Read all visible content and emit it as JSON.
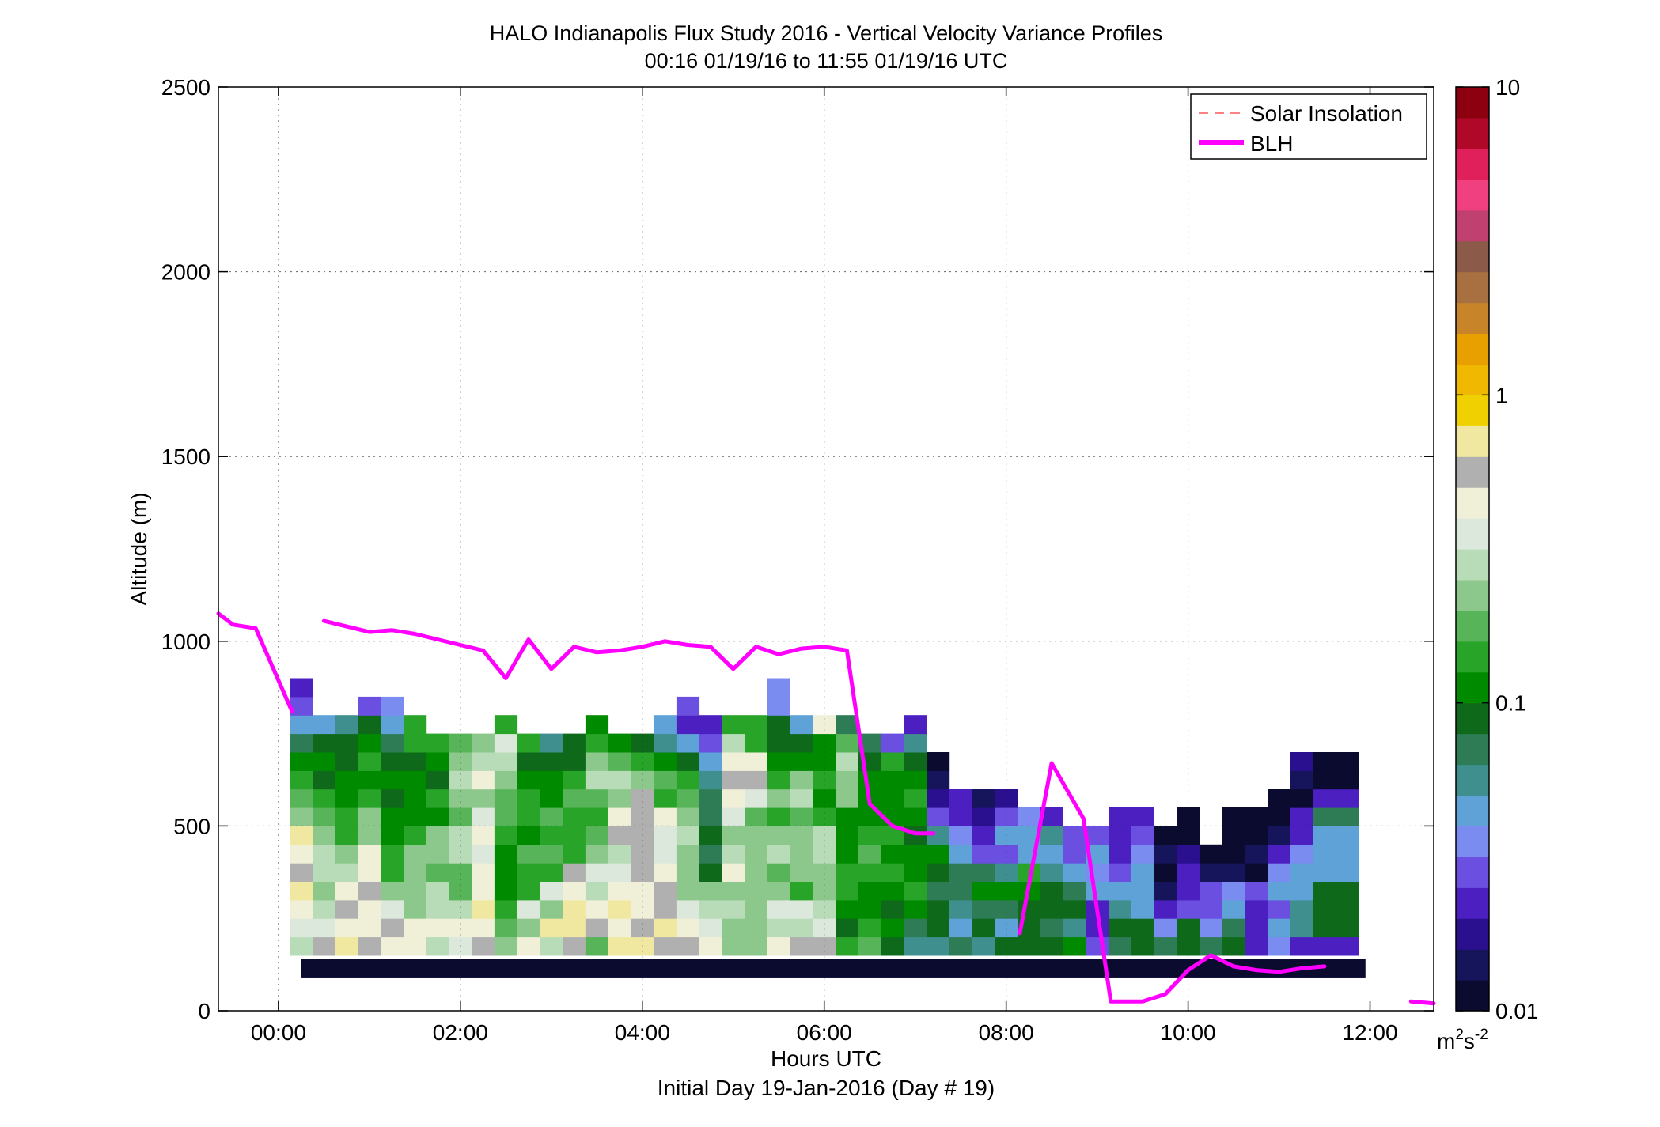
{
  "chart_data": {
    "type": "heatmap",
    "title": "HALO Indianapolis Flux Study 2016 - Vertical Velocity Variance Profiles",
    "subtitle": "00:16 01/19/16 to 11:55 01/19/16  UTC",
    "xlabel": "Hours UTC",
    "xlabel2": "Initial Day 19-Jan-2016 (Day # 19)",
    "ylabel": "Altitude (m)",
    "xlim": [
      -0.66,
      12.7
    ],
    "ylim": [
      0,
      2500
    ],
    "x_ticks": [
      {
        "value": 0,
        "label": "00:00"
      },
      {
        "value": 2,
        "label": "02:00"
      },
      {
        "value": 4,
        "label": "04:00"
      },
      {
        "value": 6,
        "label": "06:00"
      },
      {
        "value": 8,
        "label": "08:00"
      },
      {
        "value": 10,
        "label": "10:00"
      },
      {
        "value": 12,
        "label": "12:00"
      }
    ],
    "y_ticks": [
      {
        "value": 0,
        "label": "0"
      },
      {
        "value": 500,
        "label": "500"
      },
      {
        "value": 1000,
        "label": "1000"
      },
      {
        "value": 1500,
        "label": "1500"
      },
      {
        "value": 2000,
        "label": "2000"
      },
      {
        "value": 2500,
        "label": "2500"
      }
    ],
    "grid": true,
    "legend_position": "top-right",
    "legend": [
      {
        "label": "Solar Insolation",
        "color": "#ff8080",
        "style": "dashed"
      },
      {
        "label": "BLH",
        "color": "#ff00ff",
        "style": "solid"
      }
    ],
    "colorbar": {
      "scale": "log",
      "ticks": [
        {
          "value": 10,
          "label": "10"
        },
        {
          "value": 1,
          "label": "1"
        },
        {
          "value": 0.1,
          "label": "0.1"
        },
        {
          "value": 0.01,
          "label": "0.01"
        }
      ],
      "unit_base": "m",
      "unit_exp1": "2",
      "unit_mid": "s",
      "unit_exp2": "-2",
      "colors": [
        "#0b0b30",
        "#16145a",
        "#2a0f8f",
        "#4b1fc0",
        "#6a4fe0",
        "#7a8cf0",
        "#5fa2d8",
        "#3f8f8f",
        "#2e7c56",
        "#0e6a1a",
        "#008a00",
        "#28a428",
        "#58b458",
        "#8cc88c",
        "#b8dcb8",
        "#dce8dc",
        "#f0f0d8",
        "#b0b0b0",
        "#f0e8a0",
        "#f0d000",
        "#f0b800",
        "#e8a000",
        "#c88428",
        "#a87040",
        "#8c5a48",
        "#c04070",
        "#f04080",
        "#e0205a",
        "#b00828",
        "#8c0010"
      ]
    },
    "bin_height_m": 50,
    "x_bins": [
      0.25,
      0.5,
      0.75,
      1.0,
      1.25,
      1.5,
      1.75,
      2.0,
      2.25,
      2.5,
      2.75,
      3.0,
      3.25,
      3.5,
      3.75,
      4.0,
      4.25,
      4.5,
      4.75,
      5.0,
      5.25,
      5.5,
      5.75,
      6.0,
      6.25,
      6.5,
      6.75,
      7.0,
      7.25,
      7.5,
      7.75,
      8.0,
      8.25,
      8.5,
      8.75,
      9.0,
      9.25,
      9.5,
      9.75,
      10.0,
      10.25,
      10.5,
      10.75,
      11.0,
      11.25,
      11.5,
      11.75
    ],
    "column_bottom_m": 150,
    "columns": [
      {
        "x": 0.25,
        "v": [
          0.28,
          0.33,
          0.5,
          0.65,
          0.55,
          0.45,
          0.7,
          0.22,
          0.18,
          0.14,
          0.1,
          0.07,
          0.05,
          0.03,
          0.02
        ]
      },
      {
        "x": 0.5,
        "v": [
          0.6,
          0.35,
          0.28,
          0.25,
          0.3,
          0.28,
          0.22,
          0.16,
          0.13,
          0.08,
          0.12,
          0.09,
          0.05
        ]
      },
      {
        "x": 0.75,
        "v": [
          0.65,
          0.45,
          0.55,
          0.48,
          0.28,
          0.25,
          0.14,
          0.13,
          0.12,
          0.1,
          0.08,
          0.09,
          0.06
        ]
      },
      {
        "x": 1.0,
        "v": [
          0.6,
          0.5,
          0.45,
          0.55,
          0.5,
          0.4,
          0.23,
          0.25,
          0.13,
          0.11,
          0.13,
          0.1,
          0.09,
          0.03
        ]
      },
      {
        "x": 1.25,
        "v": [
          0.5,
          0.55,
          0.35,
          0.25,
          0.14,
          0.14,
          0.12,
          0.12,
          0.09,
          0.1,
          0.08,
          0.07,
          0.05,
          0.035
        ]
      },
      {
        "x": 1.5,
        "v": [
          0.4,
          0.5,
          0.25,
          0.2,
          0.22,
          0.25,
          0.15,
          0.11,
          0.11,
          0.1,
          0.09,
          0.13,
          0.14
        ]
      },
      {
        "x": 1.75,
        "v": [
          0.3,
          0.45,
          0.28,
          0.28,
          0.17,
          0.2,
          0.22,
          0.11,
          0.15,
          0.09,
          0.1,
          0.14
        ]
      },
      {
        "x": 2.0,
        "v": [
          0.35,
          0.4,
          0.28,
          0.18,
          0.18,
          0.28,
          0.3,
          0.18,
          0.22,
          0.3,
          0.25,
          0.16
        ]
      },
      {
        "x": 2.25,
        "v": [
          0.6,
          0.45,
          0.7,
          0.4,
          0.5,
          0.35,
          0.45,
          0.32,
          0.22,
          0.5,
          0.28,
          0.2
        ]
      },
      {
        "x": 2.5,
        "v": [
          0.2,
          0.18,
          0.15,
          0.12,
          0.1,
          0.11,
          0.14,
          0.18,
          0.16,
          0.25,
          0.3,
          0.35,
          0.13
        ]
      },
      {
        "x": 2.75,
        "v": [
          0.4,
          0.22,
          0.35,
          0.13,
          0.15,
          0.16,
          0.12,
          0.14,
          0.13,
          0.11,
          0.09,
          0.14
        ]
      },
      {
        "x": 3.0,
        "v": [
          0.3,
          0.65,
          0.25,
          0.35,
          0.13,
          0.17,
          0.14,
          0.18,
          0.12,
          0.1,
          0.08,
          0.06
        ]
      },
      {
        "x": 3.25,
        "v": [
          0.6,
          0.75,
          0.65,
          0.5,
          0.6,
          0.15,
          0.15,
          0.13,
          0.17,
          0.14,
          0.08,
          0.08
        ]
      },
      {
        "x": 3.5,
        "v": [
          0.18,
          0.55,
          0.4,
          0.3,
          0.35,
          0.2,
          0.16,
          0.15,
          0.19,
          0.28,
          0.25,
          0.14,
          0.1
        ]
      },
      {
        "x": 3.75,
        "v": [
          0.65,
          0.5,
          0.65,
          0.45,
          0.33,
          0.28,
          0.55,
          0.45,
          0.25,
          0.3,
          0.16,
          0.11
        ]
      },
      {
        "x": 4.0,
        "v": [
          0.75,
          0.55,
          0.4,
          0.5,
          0.6,
          0.55,
          0.6,
          0.6,
          0.55,
          0.2,
          0.14,
          0.08
        ]
      },
      {
        "x": 4.25,
        "v": [
          0.6,
          0.7,
          0.55,
          0.55,
          0.45,
          0.35,
          0.35,
          0.45,
          0.13,
          0.18,
          0.12,
          0.06,
          0.04
        ]
      },
      {
        "x": 4.5,
        "v": [
          0.55,
          0.4,
          0.35,
          0.2,
          0.25,
          0.25,
          0.3,
          0.25,
          0.18,
          0.15,
          0.09,
          0.05,
          0.025,
          0.03
        ]
      },
      {
        "x": 4.75,
        "v": [
          0.45,
          0.35,
          0.3,
          0.22,
          0.08,
          0.07,
          0.08,
          0.07,
          0.07,
          0.06,
          0.04,
          0.03,
          0.025
        ]
      },
      {
        "x": 5.0,
        "v": [
          0.22,
          0.22,
          0.28,
          0.24,
          0.4,
          0.3,
          0.22,
          0.35,
          0.45,
          0.55,
          0.4,
          0.28,
          0.15
        ]
      },
      {
        "x": 5.25,
        "v": [
          0.22,
          0.2,
          0.23,
          0.22,
          0.25,
          0.22,
          0.2,
          0.18,
          0.35,
          0.6,
          0.4,
          0.15,
          0.13
        ]
      },
      {
        "x": 5.5,
        "v": [
          0.45,
          0.3,
          0.35,
          0.2,
          0.18,
          0.3,
          0.22,
          0.15,
          0.2,
          0.14,
          0.1,
          0.08,
          0.09,
          0.035,
          0.035
        ]
      },
      {
        "x": 5.75,
        "v": [
          0.6,
          0.3,
          0.35,
          0.15,
          0.2,
          0.25,
          0.2,
          0.16,
          0.26,
          0.2,
          0.12,
          0.08,
          0.04
        ]
      },
      {
        "x": 6.0,
        "v": [
          0.6,
          0.35,
          0.28,
          0.22,
          0.25,
          0.3,
          0.28,
          0.14,
          0.12,
          0.14,
          0.12,
          0.1,
          0.45
        ]
      },
      {
        "x": 6.25,
        "v": [
          0.14,
          0.09,
          0.12,
          0.15,
          0.14,
          0.12,
          0.1,
          0.11,
          0.22,
          0.2,
          0.28,
          0.19,
          0.07
        ]
      },
      {
        "x": 6.5,
        "v": [
          0.16,
          0.13,
          0.1,
          0.12,
          0.14,
          0.16,
          0.14,
          0.12,
          0.1,
          0.11,
          0.09,
          0.07
        ]
      },
      {
        "x": 6.75,
        "v": [
          0.09,
          0.1,
          0.08,
          0.11,
          0.13,
          0.1,
          0.14,
          0.12,
          0.1,
          0.12,
          0.14,
          0.03
        ]
      },
      {
        "x": 7.0,
        "v": [
          0.06,
          0.07,
          0.11,
          0.13,
          0.1,
          0.1,
          0.09,
          0.12,
          0.15,
          0.1,
          0.09,
          0.06,
          0.02
        ]
      },
      {
        "x": 7.25,
        "v": [
          0.06,
          0.09,
          0.08,
          0.07,
          0.09,
          0.1,
          0.06,
          0.03,
          0.018,
          0.014,
          0.012
        ]
      },
      {
        "x": 7.5,
        "v": [
          0.07,
          0.045,
          0.06,
          0.07,
          0.07,
          0.045,
          0.035,
          0.025,
          0.025
        ]
      },
      {
        "x": 7.75,
        "v": [
          0.06,
          0.08,
          0.07,
          0.1,
          0.07,
          0.03,
          0.025,
          0.018,
          0.015
        ]
      },
      {
        "x": 8.0,
        "v": [
          0.08,
          0.05,
          0.07,
          0.1,
          0.06,
          0.03,
          0.04,
          0.03,
          0.018
        ]
      },
      {
        "x": 8.25,
        "v": [
          0.09,
          0.08,
          0.09,
          0.12,
          0.14,
          0.04,
          0.05,
          0.035
        ]
      },
      {
        "x": 8.5,
        "v": [
          0.08,
          0.07,
          0.08,
          0.09,
          0.06,
          0.05,
          0.06,
          0.025
        ]
      },
      {
        "x": 8.75,
        "v": [
          0.1,
          0.06,
          0.09,
          0.07,
          0.04,
          0.03,
          0.028
        ]
      },
      {
        "x": 9.0,
        "v": [
          0.03,
          0.02,
          0.02,
          0.05,
          0.035,
          0.04,
          0.03
        ]
      },
      {
        "x": 9.25,
        "v": [
          0.07,
          0.08,
          0.06,
          0.05,
          0.03,
          0.025,
          0.025,
          0.02
        ]
      },
      {
        "x": 9.5,
        "v": [
          0.08,
          0.09,
          0.05,
          0.04,
          0.04,
          0.035,
          0.03,
          0.02
        ]
      },
      {
        "x": 9.75,
        "v": [
          0.07,
          0.035,
          0.025,
          0.015,
          0.012,
          0.015,
          0.012
        ]
      },
      {
        "x": 10.0,
        "v": [
          0.08,
          0.09,
          0.03,
          0.025,
          0.02,
          0.018,
          0.012,
          0.012
        ]
      },
      {
        "x": 10.25,
        "v": [
          0.07,
          0.035,
          0.03,
          0.028,
          0.015,
          0.012
        ]
      },
      {
        "x": 10.5,
        "v": [
          0.09,
          0.07,
          0.05,
          0.035,
          0.015,
          0.012,
          0.012,
          0.012
        ]
      },
      {
        "x": 10.75,
        "v": [
          0.025,
          0.02,
          0.02,
          0.03,
          0.012,
          0.013,
          0.012,
          0.012
        ]
      },
      {
        "x": 11.0,
        "v": [
          0.035,
          0.05,
          0.03,
          0.04,
          0.035,
          0.025,
          0.014,
          0.012,
          0.012
        ]
      },
      {
        "x": 11.25,
        "v": [
          0.025,
          0.06,
          0.06,
          0.045,
          0.04,
          0.035,
          0.025,
          0.02,
          0.012,
          0.015,
          0.018
        ]
      },
      {
        "x": 11.5,
        "v": [
          0.02,
          0.08,
          0.08,
          0.08,
          0.05,
          0.05,
          0.04,
          0.07,
          0.02,
          0.012,
          0.012
        ]
      },
      {
        "x": 11.75,
        "v": [
          0.02,
          0.08,
          0.08,
          0.08,
          0.05,
          0.05,
          0.04,
          0.07,
          0.02,
          0.012,
          0.012
        ]
      }
    ],
    "base_band": {
      "x_start": 0.25,
      "x_end": 11.95,
      "y_start": 90,
      "y_end": 140,
      "value": 0.01
    },
    "series": [
      {
        "name": "BLH",
        "color": "#ff00ff",
        "segments": [
          {
            "x": [
              -0.66,
              -0.5,
              -0.25,
              0.15
            ],
            "y": [
              1075,
              1045,
              1035,
              810
            ]
          },
          {
            "x": [
              0.5,
              0.75,
              1.0,
              1.25,
              1.5,
              1.75,
              2.0,
              2.25,
              2.5,
              2.75,
              3.0,
              3.25,
              3.5,
              3.75,
              4.0,
              4.25,
              4.5,
              4.75,
              5.0,
              5.25,
              5.5,
              5.75,
              6.0,
              6.25,
              6.5,
              6.75,
              7.0,
              7.2
            ],
            "y": [
              1055,
              1040,
              1025,
              1030,
              1020,
              1005,
              990,
              975,
              900,
              1005,
              925,
              985,
              970,
              975,
              985,
              1000,
              990,
              985,
              925,
              985,
              965,
              980,
              985,
              975,
              560,
              500,
              480,
              480
            ]
          },
          {
            "x": [
              8.15,
              8.5,
              8.85,
              9.15,
              9.5,
              9.75,
              10.0,
              10.25,
              10.5,
              10.75,
              11.0,
              11.25,
              11.5
            ],
            "y": [
              210,
              670,
              520,
              25,
              25,
              45,
              110,
              150,
              120,
              110,
              105,
              115,
              120
            ]
          },
          {
            "x": [
              12.45,
              12.7
            ],
            "y": [
              25,
              20
            ]
          }
        ]
      }
    ]
  }
}
